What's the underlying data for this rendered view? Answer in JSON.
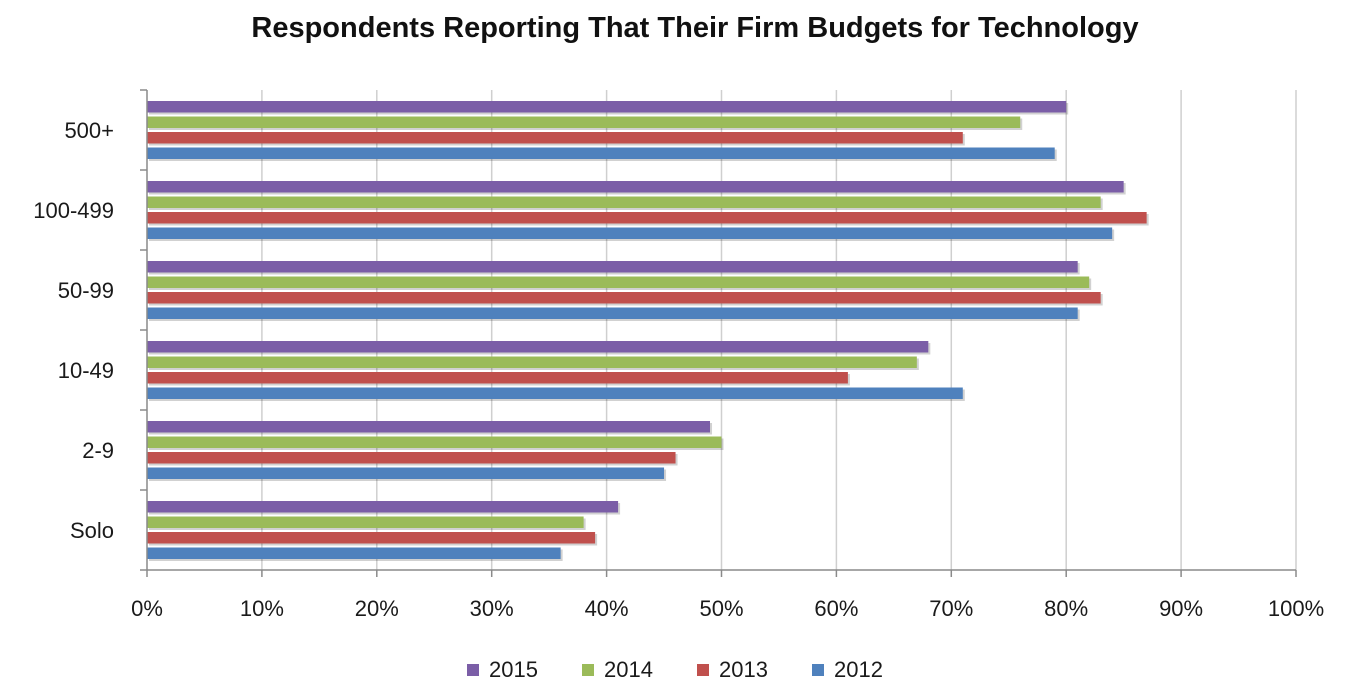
{
  "chart_data": {
    "type": "bar",
    "orientation": "horizontal",
    "title": "Respondents Reporting That Their Firm Budgets for  Technology",
    "xlabel": "",
    "ylabel": "",
    "categories": [
      "500+",
      "100-499",
      "50-99",
      "10-49",
      "2-9",
      "Solo"
    ],
    "x_ticks": [
      "0%",
      "10%",
      "20%",
      "30%",
      "40%",
      "50%",
      "60%",
      "70%",
      "80%",
      "90%",
      "100%"
    ],
    "xlim": [
      0,
      100
    ],
    "grid": "vertical",
    "legend_position": "bottom",
    "series": [
      {
        "name": "2015",
        "color": "#7b5ea7",
        "values": [
          80,
          85,
          81,
          68,
          49,
          41
        ]
      },
      {
        "name": "2014",
        "color": "#9bbb59",
        "values": [
          76,
          83,
          82,
          67,
          50,
          38
        ]
      },
      {
        "name": "2013",
        "color": "#c0504d",
        "values": [
          71,
          87,
          83,
          61,
          46,
          39
        ]
      },
      {
        "name": "2012",
        "color": "#4f81bd",
        "values": [
          79,
          84,
          81,
          71,
          45,
          36
        ]
      }
    ]
  }
}
